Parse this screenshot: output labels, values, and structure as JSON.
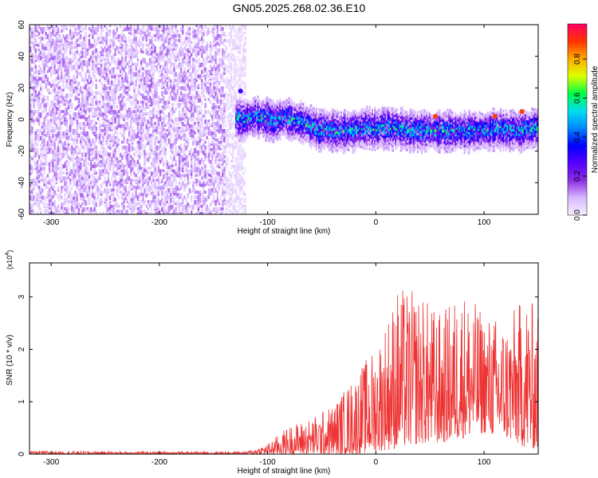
{
  "title": "GN05.2025.268.02.36.E10",
  "colors": {
    "snr_line": "#ee3333",
    "colormap": [
      "#f5f0ff",
      "#d9b8ff",
      "#8a2be2",
      "#5500ff",
      "#0000ff",
      "#0088ff",
      "#00ddee",
      "#00ff44",
      "#ddff00",
      "#ffaa00",
      "#ff3300",
      "#ff0066"
    ]
  },
  "chart_data": [
    {
      "type": "heatmap",
      "title": "",
      "xlabel": "Height of straight line (km)",
      "ylabel": "Frequency (Hz)",
      "xlim": [
        -320,
        150
      ],
      "ylim": [
        -60,
        60
      ],
      "xticks": [
        -300,
        -200,
        -100,
        0,
        100
      ],
      "xtick_labels": [
        "-300",
        "-200",
        "-100",
        "0",
        "100"
      ],
      "yticks": [
        -60,
        -40,
        -20,
        0,
        20,
        40,
        60
      ],
      "ytick_labels": [
        "-60",
        "-40",
        "-20",
        "0",
        "20",
        "40",
        "60"
      ],
      "colorbar": {
        "label": "Normalized spectral amplitude",
        "range": [
          0,
          0.98
        ],
        "ticks": [
          0.0,
          0.2,
          0.4,
          0.6,
          0.8
        ],
        "tick_labels": [
          "0.0",
          "0.2",
          "0.4",
          "0.6",
          "0.8"
        ]
      },
      "regions": [
        {
          "x_range": [
            -320,
            -130
          ],
          "freq_range": [
            -60,
            60
          ],
          "amplitude_range": [
            0.02,
            0.15
          ],
          "description": "broadband noise"
        },
        {
          "x_range": [
            -130,
            150
          ],
          "freq_center": 0,
          "half_width": 10,
          "amplitude_range": [
            0.15,
            0.95
          ],
          "description": "narrow band near 0 Hz"
        }
      ],
      "band_peaks": [
        {
          "x": -125,
          "freq": 18,
          "amplitude": 0.3
        },
        {
          "x": 55,
          "freq": 2,
          "amplitude": 0.9
        },
        {
          "x": 110,
          "freq": 2,
          "amplitude": 0.9
        },
        {
          "x": 135,
          "freq": 5,
          "amplitude": 0.9
        }
      ]
    },
    {
      "type": "line",
      "title": "",
      "xlabel": "Height of straight line (km)",
      "ylabel": "SNR (10 * v/v)",
      "y_multiplier": "(x10",
      "y_multiplier_exp": "4",
      "y_multiplier_close": ")",
      "xlim": [
        -320,
        150
      ],
      "ylim": [
        0,
        3.65
      ],
      "xticks": [
        -300,
        -200,
        -100,
        0,
        100
      ],
      "xtick_labels": [
        "-300",
        "-200",
        "-100",
        "0",
        "100"
      ],
      "yticks": [
        0,
        1,
        2,
        3
      ],
      "ytick_labels": [
        "0",
        "1",
        "2",
        "3"
      ],
      "series": [
        {
          "envelope_x": [
            -320,
            -200,
            -120,
            -100,
            -80,
            -60,
            -40,
            -20,
            0,
            20,
            40,
            60,
            80,
            100,
            120,
            140,
            150
          ],
          "envelope_max": [
            0.06,
            0.05,
            0.05,
            0.2,
            0.55,
            0.7,
            0.95,
            1.5,
            2.1,
            3.2,
            3.1,
            2.7,
            3.2,
            2.7,
            2.6,
            3.1,
            2.7
          ],
          "envelope_min": [
            0.0,
            0.0,
            0.0,
            0.0,
            0.0,
            0.0,
            0.0,
            0.0,
            0.05,
            0.1,
            0.2,
            0.2,
            0.3,
            0.4,
            0.3,
            0.1,
            0.1
          ]
        }
      ]
    }
  ]
}
